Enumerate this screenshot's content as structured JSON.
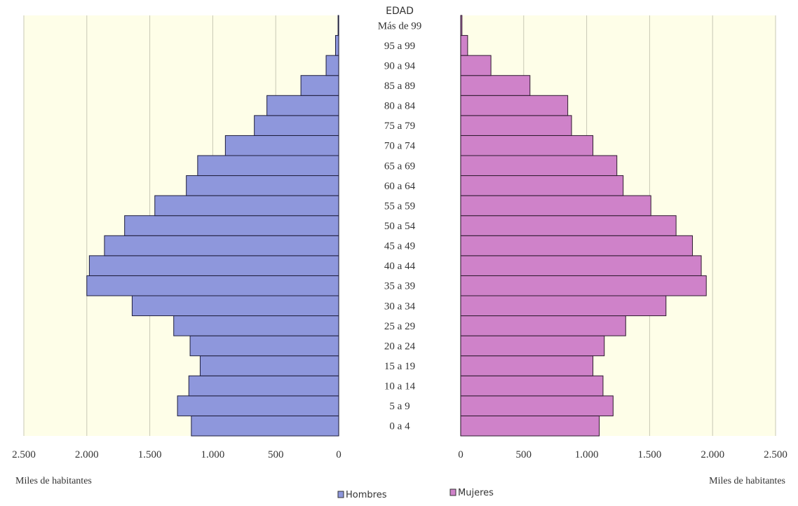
{
  "chart_data": {
    "type": "bar",
    "orientation": "horizontal-pyramid",
    "age_header": "EDAD",
    "categories": [
      "0 a 4",
      "5 a 9",
      "10 a 14",
      "15 a 19",
      "20 a 24",
      "25 a 29",
      "30 a 34",
      "35 a 39",
      "40 a 44",
      "45 a 49",
      "50 a 54",
      "55 a 59",
      "60 a 64",
      "65 a 69",
      "70 a 74",
      "75 a 79",
      "80 a 84",
      "85 a 89",
      "90 a 94",
      "95 a 99",
      "Más de 99"
    ],
    "series": [
      {
        "name": "Hombres",
        "color": "#8e97dc",
        "values": [
          1170,
          1280,
          1190,
          1100,
          1180,
          1310,
          1640,
          2000,
          1980,
          1860,
          1700,
          1460,
          1210,
          1120,
          900,
          670,
          570,
          300,
          100,
          25,
          5
        ]
      },
      {
        "name": "Mujeres",
        "color": "#cf82c9",
        "values": [
          1100,
          1210,
          1130,
          1050,
          1140,
          1310,
          1630,
          1950,
          1910,
          1840,
          1710,
          1510,
          1290,
          1240,
          1050,
          880,
          850,
          550,
          240,
          55,
          10
        ]
      }
    ],
    "x_ticks_left": [
      "2.500",
      "2.000",
      "1.500",
      "1.000",
      "500",
      "0"
    ],
    "x_ticks_right": [
      "0",
      "500",
      "1.000",
      "1.500",
      "2.000",
      "2.500"
    ],
    "xlim": [
      0,
      2500
    ],
    "xlabel_left": "Miles de habitantes",
    "xlabel_right": "Miles de habitantes",
    "grid": true,
    "legend": [
      "Hombres",
      "Mujeres"
    ],
    "legend_position": "bottom-center",
    "plot_background": "#fefee8",
    "grid_color": "#c8c8b4"
  }
}
